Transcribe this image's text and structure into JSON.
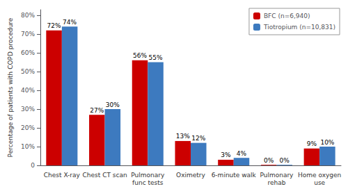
{
  "chart_data": {
    "type": "bar",
    "categories": [
      "Chest X-ray",
      "Chest CT scan",
      "Pulmonary\nfunc tests",
      "Oximetry",
      "6-minute walk",
      "Pulmonary\nrehab",
      "Home oxygen\nuse"
    ],
    "series": [
      {
        "name": "BFC (n=6,940)",
        "color": "#cc0000",
        "values": [
          72,
          27,
          56,
          13,
          3,
          0.3,
          9
        ],
        "value_labels": [
          "72%",
          "27%",
          "56%",
          "13%",
          "3%",
          "0%",
          "9%"
        ]
      },
      {
        "name": "Tiotropium (n=10,831)",
        "color": "#3d7abf",
        "values": [
          74,
          30,
          55,
          12,
          4,
          0.3,
          10
        ],
        "value_labels": [
          "74%",
          "30%",
          "55%",
          "12%",
          "4%",
          "0%",
          "10%"
        ]
      }
    ],
    "ylabel": "Percentage of patients with COPD procedure",
    "ylim": [
      0,
      83
    ],
    "yticks": [
      0,
      {
        "value": 10,
        "label": "10%"
      },
      {
        "value": 20,
        "label": "20%"
      },
      {
        "value": 30,
        "label": "30%"
      },
      {
        "value": 40,
        "label": "40%"
      },
      {
        "value": 50,
        "label": "50%"
      },
      {
        "value": 60,
        "label": "60%"
      },
      {
        "value": 70,
        "label": "70%"
      },
      {
        "value": 80,
        "label": "80%"
      }
    ],
    "grid": false,
    "legend": "upper right",
    "data_labels": true
  }
}
